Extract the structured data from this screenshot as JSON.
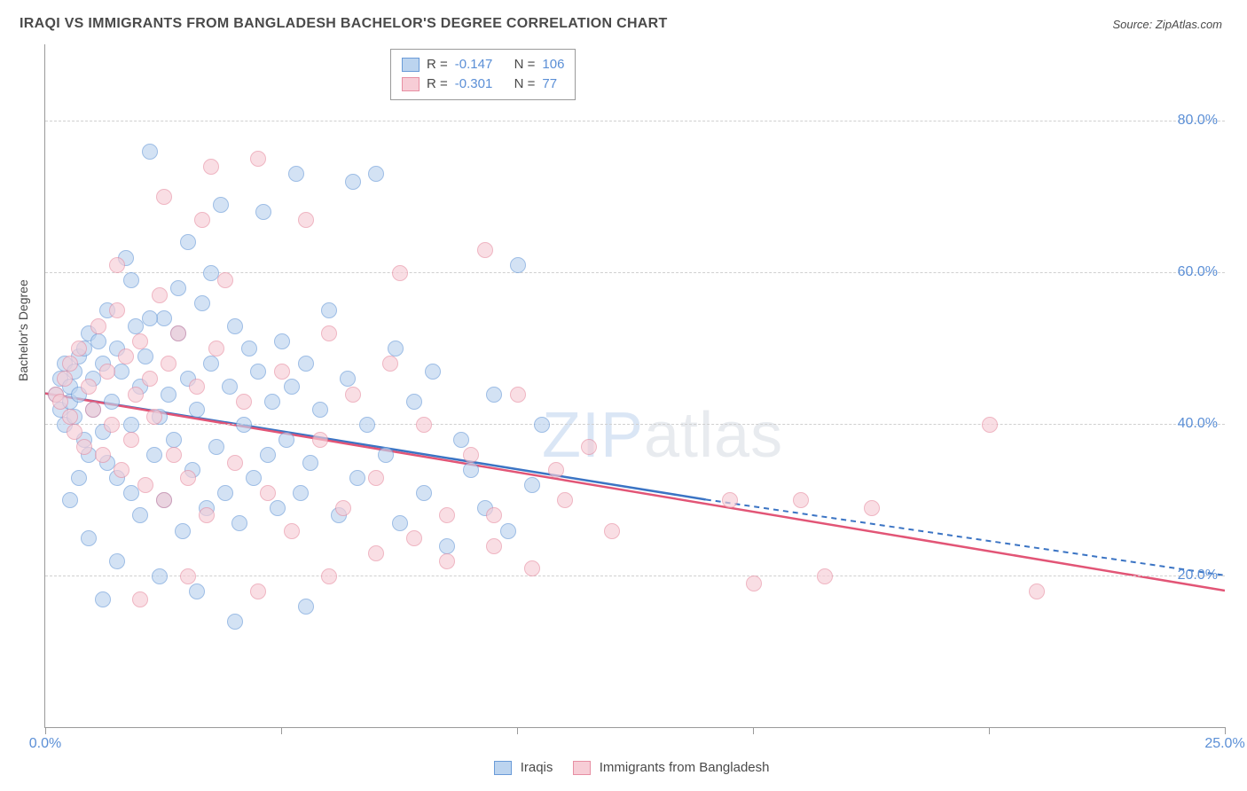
{
  "title": "IRAQI VS IMMIGRANTS FROM BANGLADESH BACHELOR'S DEGREE CORRELATION CHART",
  "source": "Source: ZipAtlas.com",
  "watermark_a": "ZIP",
  "watermark_b": "atlas",
  "y_axis_title": "Bachelor's Degree",
  "chart": {
    "type": "scatter",
    "background_color": "#ffffff",
    "grid_color": "#d0d0d0",
    "axis_color": "#9a9a9a",
    "label_color": "#5b8fd6",
    "label_fontsize": 16,
    "title_fontsize": 16,
    "point_radius": 8,
    "point_opacity": 0.65,
    "xlim": [
      0,
      25
    ],
    "ylim": [
      0,
      90
    ],
    "y_ticks": [
      20,
      40,
      60,
      80
    ],
    "y_tick_labels": [
      "20.0%",
      "40.0%",
      "60.0%",
      "80.0%"
    ],
    "x_ticks": [
      0,
      5,
      10,
      15,
      20,
      25
    ],
    "x_tick_labels": [
      "0.0%",
      "",
      "",
      "",
      "",
      "25.0%"
    ],
    "series": [
      {
        "name": "Iraqis",
        "fill_color": "#bcd4ef",
        "stroke_color": "#6a9bd8",
        "line_color": "#3b74c4",
        "R": "-0.147",
        "N": "106",
        "regression": {
          "x1": 0,
          "y1": 44,
          "x2_solid": 14,
          "y2_solid": 30,
          "x2_dash": 25,
          "y2_dash": 20
        },
        "points": [
          [
            0.2,
            44
          ],
          [
            0.3,
            46
          ],
          [
            0.3,
            42
          ],
          [
            0.4,
            48
          ],
          [
            0.4,
            40
          ],
          [
            0.5,
            45
          ],
          [
            0.5,
            43
          ],
          [
            0.6,
            47
          ],
          [
            0.6,
            41
          ],
          [
            0.7,
            49
          ],
          [
            0.7,
            44
          ],
          [
            0.8,
            50
          ],
          [
            0.8,
            38
          ],
          [
            0.9,
            52
          ],
          [
            0.9,
            36
          ],
          [
            1.0,
            46
          ],
          [
            1.0,
            42
          ],
          [
            1.1,
            51
          ],
          [
            1.2,
            48
          ],
          [
            1.2,
            39
          ],
          [
            1.3,
            55
          ],
          [
            1.3,
            35
          ],
          [
            1.4,
            43
          ],
          [
            1.5,
            50
          ],
          [
            1.5,
            33
          ],
          [
            1.6,
            47
          ],
          [
            1.7,
            62
          ],
          [
            1.8,
            40
          ],
          [
            1.8,
            31
          ],
          [
            1.9,
            53
          ],
          [
            2.0,
            45
          ],
          [
            2.0,
            28
          ],
          [
            2.1,
            49
          ],
          [
            2.2,
            76
          ],
          [
            2.3,
            36
          ],
          [
            2.4,
            41
          ],
          [
            2.5,
            54
          ],
          [
            2.5,
            30
          ],
          [
            2.6,
            44
          ],
          [
            2.7,
            38
          ],
          [
            2.8,
            52
          ],
          [
            2.9,
            26
          ],
          [
            3.0,
            46
          ],
          [
            3.0,
            64
          ],
          [
            3.1,
            34
          ],
          [
            3.2,
            42
          ],
          [
            3.3,
            56
          ],
          [
            3.4,
            29
          ],
          [
            3.5,
            48
          ],
          [
            3.6,
            37
          ],
          [
            3.7,
            69
          ],
          [
            3.8,
            31
          ],
          [
            3.9,
            45
          ],
          [
            4.0,
            53
          ],
          [
            4.1,
            27
          ],
          [
            4.2,
            40
          ],
          [
            4.3,
            50
          ],
          [
            4.4,
            33
          ],
          [
            4.5,
            47
          ],
          [
            4.6,
            68
          ],
          [
            4.7,
            36
          ],
          [
            4.8,
            43
          ],
          [
            4.9,
            29
          ],
          [
            5.0,
            51
          ],
          [
            5.1,
            38
          ],
          [
            5.2,
            45
          ],
          [
            5.3,
            73
          ],
          [
            5.4,
            31
          ],
          [
            5.5,
            48
          ],
          [
            5.6,
            35
          ],
          [
            5.8,
            42
          ],
          [
            6.0,
            55
          ],
          [
            6.2,
            28
          ],
          [
            6.4,
            46
          ],
          [
            6.5,
            72
          ],
          [
            6.6,
            33
          ],
          [
            6.8,
            40
          ],
          [
            7.0,
            73
          ],
          [
            7.2,
            36
          ],
          [
            7.4,
            50
          ],
          [
            7.5,
            27
          ],
          [
            7.8,
            43
          ],
          [
            8.0,
            31
          ],
          [
            8.2,
            47
          ],
          [
            8.5,
            24
          ],
          [
            8.8,
            38
          ],
          [
            9.0,
            34
          ],
          [
            9.3,
            29
          ],
          [
            9.5,
            44
          ],
          [
            9.8,
            26
          ],
          [
            10.0,
            61
          ],
          [
            10.3,
            32
          ],
          [
            10.5,
            40
          ],
          [
            4.0,
            14
          ],
          [
            5.5,
            16
          ],
          [
            3.2,
            18
          ],
          [
            2.4,
            20
          ],
          [
            1.5,
            22
          ],
          [
            2.8,
            58
          ],
          [
            3.5,
            60
          ],
          [
            1.2,
            17
          ],
          [
            0.9,
            25
          ],
          [
            1.8,
            59
          ],
          [
            2.2,
            54
          ],
          [
            0.5,
            30
          ],
          [
            0.7,
            33
          ]
        ]
      },
      {
        "name": "Immigrants from Bangladesh",
        "fill_color": "#f7cdd6",
        "stroke_color": "#e78fa3",
        "line_color": "#e25576",
        "R": "-0.301",
        "N": "77",
        "regression": {
          "x1": 0,
          "y1": 44,
          "x2_solid": 25,
          "y2_solid": 18,
          "x2_dash": 25,
          "y2_dash": 18
        },
        "points": [
          [
            0.2,
            44
          ],
          [
            0.3,
            43
          ],
          [
            0.4,
            46
          ],
          [
            0.5,
            41
          ],
          [
            0.5,
            48
          ],
          [
            0.6,
            39
          ],
          [
            0.7,
            50
          ],
          [
            0.8,
            37
          ],
          [
            0.9,
            45
          ],
          [
            1.0,
            42
          ],
          [
            1.1,
            53
          ],
          [
            1.2,
            36
          ],
          [
            1.3,
            47
          ],
          [
            1.4,
            40
          ],
          [
            1.5,
            55
          ],
          [
            1.6,
            34
          ],
          [
            1.7,
            49
          ],
          [
            1.8,
            38
          ],
          [
            1.9,
            44
          ],
          [
            2.0,
            51
          ],
          [
            2.1,
            32
          ],
          [
            2.2,
            46
          ],
          [
            2.3,
            41
          ],
          [
            2.4,
            57
          ],
          [
            2.5,
            30
          ],
          [
            2.6,
            48
          ],
          [
            2.7,
            36
          ],
          [
            2.8,
            52
          ],
          [
            3.0,
            33
          ],
          [
            3.2,
            45
          ],
          [
            3.3,
            67
          ],
          [
            3.4,
            28
          ],
          [
            3.6,
            50
          ],
          [
            3.8,
            59
          ],
          [
            4.0,
            35
          ],
          [
            4.2,
            43
          ],
          [
            4.5,
            75
          ],
          [
            4.7,
            31
          ],
          [
            5.0,
            47
          ],
          [
            5.2,
            26
          ],
          [
            5.5,
            67
          ],
          [
            5.8,
            38
          ],
          [
            6.0,
            52
          ],
          [
            6.3,
            29
          ],
          [
            6.5,
            44
          ],
          [
            7.0,
            33
          ],
          [
            7.3,
            48
          ],
          [
            7.5,
            60
          ],
          [
            7.8,
            25
          ],
          [
            8.0,
            40
          ],
          [
            8.5,
            22
          ],
          [
            9.0,
            36
          ],
          [
            9.3,
            63
          ],
          [
            9.5,
            28
          ],
          [
            10.0,
            44
          ],
          [
            10.3,
            21
          ],
          [
            10.8,
            34
          ],
          [
            11.0,
            30
          ],
          [
            11.5,
            37
          ],
          [
            12.0,
            26
          ],
          [
            14.5,
            30
          ],
          [
            15.0,
            19
          ],
          [
            16.0,
            30
          ],
          [
            16.5,
            20
          ],
          [
            17.5,
            29
          ],
          [
            20.0,
            40
          ],
          [
            21.0,
            18
          ],
          [
            2.5,
            70
          ],
          [
            3.5,
            74
          ],
          [
            1.5,
            61
          ],
          [
            2.0,
            17
          ],
          [
            3.0,
            20
          ],
          [
            4.5,
            18
          ],
          [
            6.0,
            20
          ],
          [
            7.0,
            23
          ],
          [
            8.5,
            28
          ],
          [
            9.5,
            24
          ]
        ]
      }
    ]
  },
  "legend_top": {
    "R_label": "R =",
    "N_label": "N ="
  },
  "legend_bottom": {
    "a": "Iraqis",
    "b": "Immigrants from Bangladesh"
  }
}
